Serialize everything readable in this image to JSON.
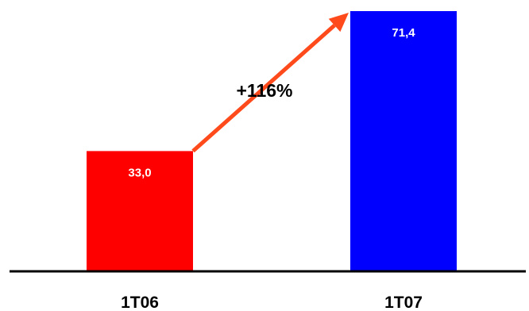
{
  "chart_data": {
    "type": "bar",
    "categories": [
      "1T06",
      "1T07"
    ],
    "values": [
      33.0,
      71.4
    ],
    "value_labels": [
      "33,0",
      "71,4"
    ],
    "bar_colors": [
      "#ff0000",
      "#0000ff"
    ],
    "ylim": [
      0,
      71.4
    ],
    "grid": false,
    "legend": "none",
    "annotation": {
      "text": "+116%",
      "type": "growth-arrow",
      "color": "#ff4a1c"
    }
  }
}
